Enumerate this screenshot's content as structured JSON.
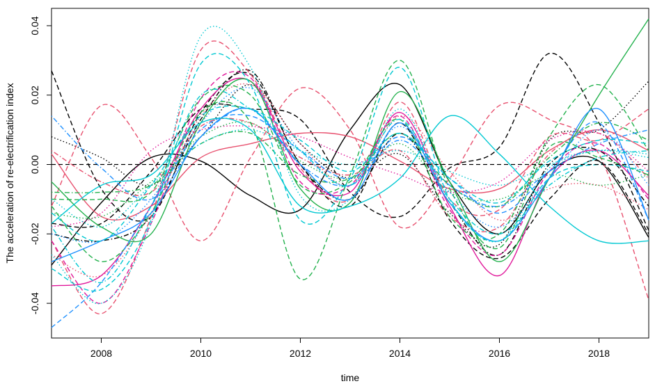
{
  "chart_data": {
    "type": "line",
    "title": "",
    "xlabel": "time",
    "ylabel": "The acceleration of re-electrification index",
    "xlim": [
      2007,
      2019
    ],
    "ylim": [
      -0.05,
      0.045
    ],
    "x_ticks": [
      2008,
      2010,
      2012,
      2014,
      2016,
      2018
    ],
    "x_tick_labels": [
      "2008",
      "2010",
      "2012",
      "2014",
      "2016",
      "2018"
    ],
    "y_ticks": [
      -0.04,
      -0.02,
      0.0,
      0.02,
      0.04
    ],
    "y_tick_labels": [
      "-0.04",
      "-0.02",
      "0.00",
      "0.02",
      "0.04"
    ],
    "reference_line": {
      "y": 0.0,
      "style": "dashed",
      "color": "#000000"
    },
    "grid": false,
    "legend": "none",
    "x": [
      2007,
      2008,
      2009,
      2010,
      2011,
      2012,
      2013,
      2014,
      2015,
      2016,
      2017,
      2018,
      2019
    ],
    "series": [
      {
        "color": "#000000",
        "style": "solid",
        "values": [
          -0.029,
          -0.011,
          0.002,
          0.001,
          -0.009,
          -0.013,
          0.01,
          0.023,
          -0.005,
          -0.02,
          -0.002,
          0.001,
          -0.021
        ]
      },
      {
        "color": "#000000",
        "style": "dashed",
        "values": [
          0.027,
          -0.007,
          -0.015,
          0.015,
          0.026,
          0.0,
          -0.012,
          0.012,
          -0.016,
          -0.027,
          -0.01,
          0.001,
          -0.02
        ]
      },
      {
        "color": "#000000",
        "style": "dashed",
        "values": [
          -0.017,
          -0.017,
          -0.002,
          0.016,
          0.016,
          0.013,
          -0.008,
          -0.015,
          -0.001,
          0.005,
          0.032,
          0.012,
          -0.019
        ]
      },
      {
        "color": "#000000",
        "style": "dotted",
        "values": [
          0.008,
          0.002,
          -0.006,
          0.008,
          0.023,
          0.006,
          -0.004,
          0.003,
          -0.014,
          -0.023,
          0.007,
          0.01,
          0.024
        ]
      },
      {
        "color": "#000000",
        "style": "dotdash",
        "values": [
          -0.02,
          -0.022,
          -0.015,
          0.013,
          0.027,
          0.0,
          -0.01,
          0.009,
          -0.011,
          -0.026,
          0.0,
          0.004,
          -0.012
        ]
      },
      {
        "color": "#e8506e",
        "style": "solid",
        "values": [
          0.003,
          -0.015,
          -0.012,
          0.002,
          0.006,
          0.009,
          0.008,
          0.001,
          -0.007,
          -0.007,
          0.004,
          0.01,
          0.004
        ]
      },
      {
        "color": "#e8506e",
        "style": "dashed",
        "values": [
          -0.012,
          0.017,
          0.002,
          -0.022,
          0.002,
          0.022,
          0.01,
          -0.018,
          -0.004,
          0.017,
          0.013,
          0.003,
          -0.039
        ]
      },
      {
        "color": "#e8506e",
        "style": "dashed",
        "values": [
          -0.022,
          -0.043,
          -0.015,
          0.033,
          0.026,
          -0.001,
          -0.01,
          0.018,
          -0.01,
          -0.013,
          0.008,
          0.007,
          0.016
        ]
      },
      {
        "color": "#e8506e",
        "style": "dotted",
        "values": [
          -0.026,
          -0.032,
          -0.014,
          0.014,
          0.023,
          0.006,
          -0.006,
          0.014,
          -0.002,
          -0.016,
          -0.007,
          -0.006,
          -0.013
        ]
      },
      {
        "color": "#e8506e",
        "style": "dotdash",
        "values": [
          0.004,
          -0.005,
          -0.008,
          0.011,
          0.012,
          0.002,
          -0.003,
          0.004,
          -0.015,
          -0.018,
          0.003,
          0.009,
          -0.004
        ]
      },
      {
        "color": "#e0179a",
        "style": "solid",
        "values": [
          -0.035,
          -0.032,
          -0.012,
          0.016,
          0.024,
          -0.002,
          -0.008,
          0.015,
          -0.012,
          -0.032,
          -0.004,
          0.004,
          -0.009
        ]
      },
      {
        "color": "#e0179a",
        "style": "dashed",
        "values": [
          -0.022,
          -0.04,
          -0.017,
          0.019,
          0.025,
          -0.005,
          -0.006,
          0.014,
          -0.013,
          -0.026,
          -0.002,
          0.006,
          -0.01
        ]
      },
      {
        "color": "#e0179a",
        "style": "dotted",
        "values": [
          -0.018,
          -0.014,
          0.004,
          0.01,
          0.011,
          0.008,
          0.002,
          -0.003,
          -0.008,
          -0.005,
          0.007,
          0.009,
          -0.002
        ]
      },
      {
        "color": "#22b14c",
        "style": "solid",
        "values": [
          -0.005,
          -0.018,
          -0.02,
          0.012,
          0.024,
          -0.007,
          -0.011,
          0.021,
          -0.005,
          -0.028,
          -0.004,
          0.02,
          0.042
        ]
      },
      {
        "color": "#22b14c",
        "style": "dashed",
        "values": [
          -0.012,
          -0.028,
          -0.014,
          0.015,
          0.012,
          -0.033,
          -0.003,
          0.03,
          -0.007,
          -0.024,
          0.005,
          0.002,
          -0.003
        ]
      },
      {
        "color": "#22b14c",
        "style": "dashed",
        "values": [
          -0.01,
          -0.01,
          -0.008,
          0.019,
          0.02,
          -0.006,
          -0.005,
          0.013,
          -0.015,
          -0.02,
          0.008,
          0.023,
          0.004
        ]
      },
      {
        "color": "#22b14c",
        "style": "dotted",
        "values": [
          -0.014,
          -0.015,
          -0.005,
          0.008,
          0.012,
          0.001,
          -0.004,
          0.006,
          -0.008,
          -0.01,
          -0.003,
          -0.006,
          -0.003
        ]
      },
      {
        "color": "#22b14c",
        "style": "dotdash",
        "values": [
          -0.008,
          -0.008,
          -0.006,
          0.006,
          0.009,
          -0.003,
          -0.004,
          0.009,
          -0.006,
          -0.012,
          0.002,
          0.012,
          0.007
        ]
      },
      {
        "color": "#1e90ff",
        "style": "solid",
        "values": [
          -0.028,
          -0.022,
          -0.014,
          0.008,
          0.016,
          0.0,
          -0.01,
          0.012,
          -0.011,
          -0.022,
          -0.004,
          0.016,
          -0.016
        ]
      },
      {
        "color": "#1e90ff",
        "style": "dashed",
        "values": [
          -0.047,
          -0.034,
          -0.012,
          0.01,
          0.014,
          0.004,
          -0.004,
          0.008,
          -0.004,
          -0.014,
          -0.002,
          0.012,
          -0.016
        ]
      },
      {
        "color": "#1e90ff",
        "style": "dotdash",
        "values": [
          0.014,
          -0.001,
          -0.01,
          0.008,
          0.016,
          0.0,
          -0.006,
          0.007,
          -0.006,
          -0.012,
          -0.002,
          0.006,
          0.01
        ]
      },
      {
        "color": "#1e90ff",
        "style": "dotted",
        "values": [
          -0.02,
          -0.022,
          -0.01,
          0.012,
          0.022,
          0.004,
          -0.006,
          0.011,
          -0.008,
          -0.018,
          -0.004,
          0.01,
          -0.006
        ]
      },
      {
        "color": "#00c8d2",
        "style": "solid",
        "values": [
          -0.017,
          -0.006,
          -0.003,
          0.012,
          0.01,
          -0.012,
          -0.012,
          -0.004,
          0.014,
          0.003,
          -0.012,
          -0.022,
          -0.022
        ]
      },
      {
        "color": "#00c8d2",
        "style": "dotted",
        "values": [
          -0.026,
          -0.04,
          -0.017,
          0.037,
          0.028,
          -0.009,
          -0.01,
          0.016,
          -0.011,
          -0.022,
          -0.001,
          0.004,
          0.003
        ]
      },
      {
        "color": "#00c8d2",
        "style": "dashed",
        "values": [
          -0.03,
          -0.036,
          -0.016,
          0.029,
          0.023,
          -0.016,
          -0.004,
          0.028,
          -0.01,
          -0.022,
          -0.004,
          0.0,
          -0.002
        ]
      },
      {
        "color": "#00c8d2",
        "style": "dotdash",
        "values": [
          -0.018,
          -0.034,
          -0.012,
          0.02,
          0.016,
          0.004,
          -0.006,
          0.013,
          -0.01,
          -0.02,
          -0.006,
          0.002,
          0.004
        ]
      },
      {
        "color": "#00c8d2",
        "style": "dashed",
        "values": [
          -0.014,
          -0.022,
          -0.006,
          0.014,
          0.016,
          0.007,
          -0.002,
          0.009,
          -0.004,
          -0.011,
          0.001,
          0.007,
          0.006
        ]
      },
      {
        "color": "#00c8d2",
        "style": "dotted",
        "values": [
          -0.01,
          -0.018,
          -0.006,
          0.006,
          0.01,
          0.004,
          0.0,
          0.004,
          -0.002,
          -0.006,
          0.0,
          0.004,
          0.002
        ]
      }
    ]
  }
}
